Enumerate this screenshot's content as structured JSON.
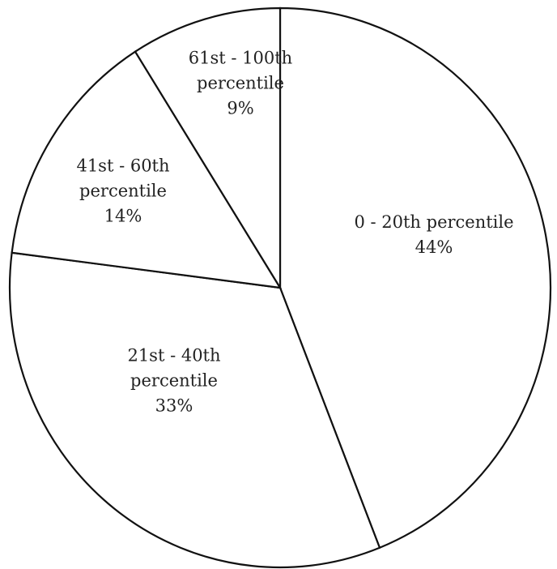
{
  "chart_data": {
    "type": "pie",
    "categories": [
      "0 - 20th percentile",
      "21st - 40th percentile",
      "41st - 60th percentile",
      "61st - 100th percentile"
    ],
    "values": [
      44,
      33,
      14,
      9
    ],
    "value_labels": [
      "44%",
      "33%",
      "14%",
      "9%"
    ],
    "color": "#ffffff"
  }
}
